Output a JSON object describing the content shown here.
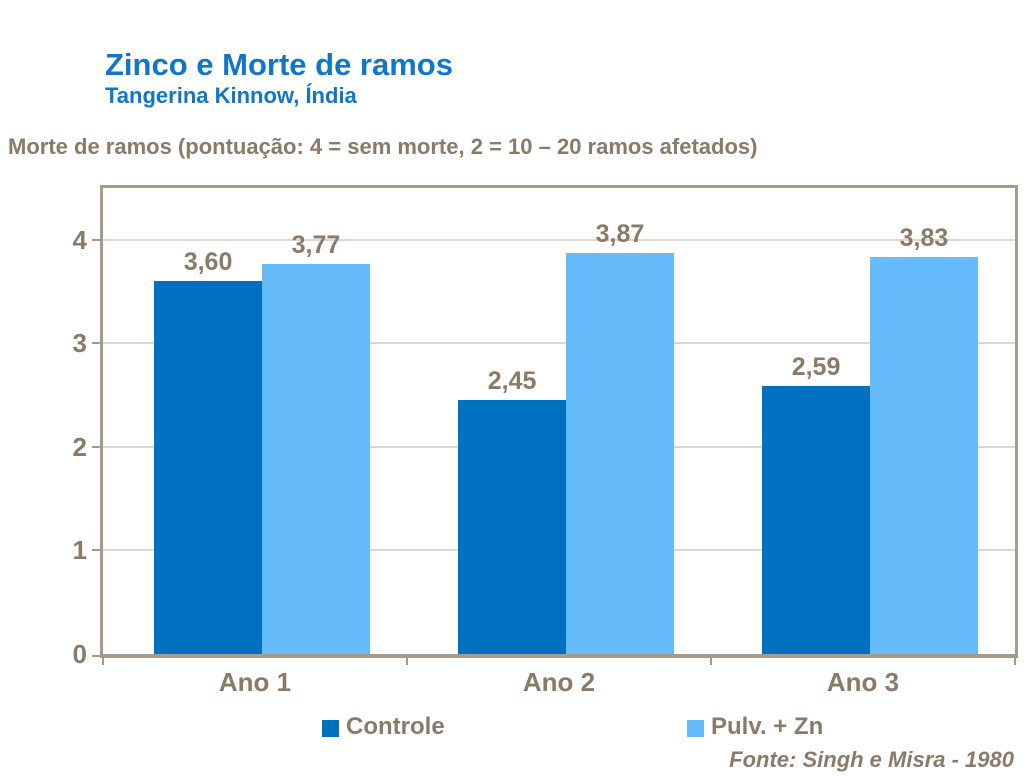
{
  "header": {
    "title": "Zinco e Morte de ramos",
    "subtitle": "Tangerina Kinnow, Índia"
  },
  "axis_note": "Morte de ramos (pontuação: 4 = sem morte, 2 = 10 – 20 ramos afetados)",
  "footer": {
    "source": "Fonte: Singh e Misra - 1980"
  },
  "colors": {
    "title_blue": "#1176C8",
    "label_brown": "#8A7A68",
    "frame_taupe": "#A79A8B",
    "gridline_gray": "#DCD9D3",
    "series_controle": "#0070C0",
    "series_pulv_zn": "#66BCFA"
  },
  "chart_data": {
    "type": "bar",
    "title": "Zinco e Morte de ramos",
    "subtitle": "Tangerina Kinnow, Índia",
    "y_axis_note": "Morte de ramos (pontuação: 4 = sem morte, 2 = 10 – 20 ramos afetados)",
    "categories": [
      "Ano 1",
      "Ano 2",
      "Ano 3"
    ],
    "series": [
      {
        "name": "Controle",
        "color": "#0070C0",
        "values": [
          3.6,
          2.45,
          2.59
        ],
        "labels": [
          "3,60",
          "2,45",
          "2,59"
        ]
      },
      {
        "name": "Pulv. + Zn",
        "color": "#66BCFA",
        "values": [
          3.77,
          3.87,
          3.83
        ],
        "labels": [
          "3,77",
          "3,87",
          "3,83"
        ]
      }
    ],
    "xlabel": "",
    "ylabel": "",
    "ylim": [
      0,
      4.5
    ],
    "yticks": [
      0,
      1,
      2,
      3,
      4
    ],
    "grid": true,
    "legend_position": "bottom",
    "source": "Fonte: Singh e Misra - 1980"
  }
}
